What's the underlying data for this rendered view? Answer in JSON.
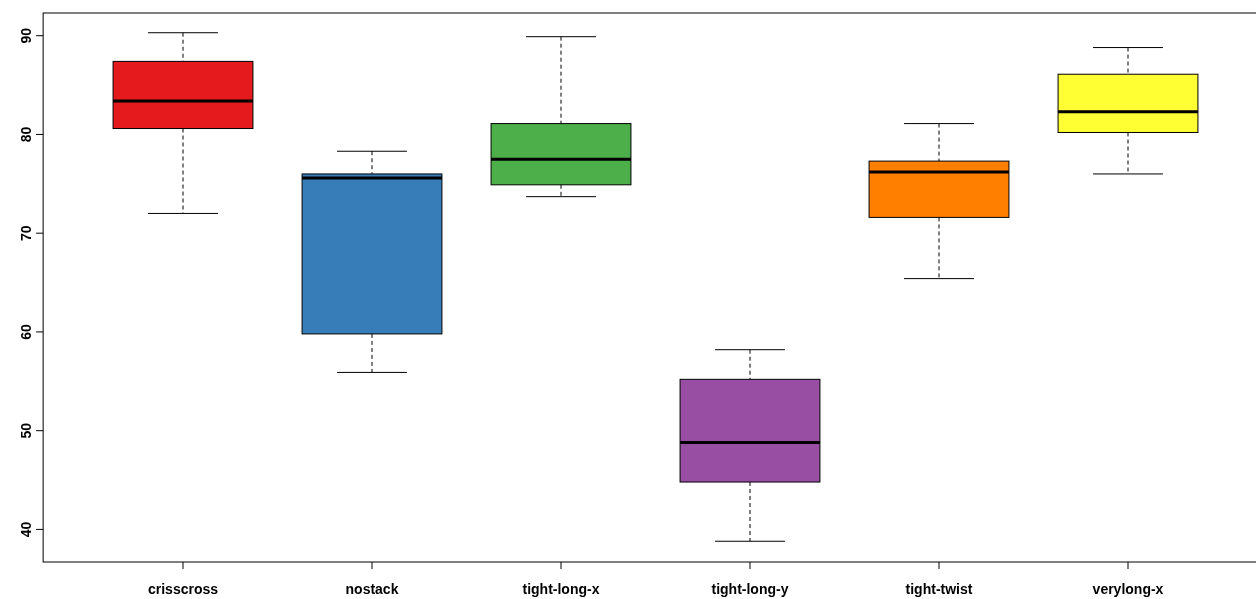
{
  "chart_data": {
    "type": "box",
    "categories": [
      "crisscross",
      "nostack",
      "tight-long-x",
      "tight-long-y",
      "tight-twist",
      "verylong-x"
    ],
    "colors": [
      "#e41a1c",
      "#377eb8",
      "#4daf4a",
      "#984ea3",
      "#ff7f00",
      "#ffff33"
    ],
    "boxes": [
      {
        "low": 72.0,
        "q1": 80.6,
        "median": 83.4,
        "q3": 87.4,
        "high": 90.3
      },
      {
        "low": 55.9,
        "q1": 59.8,
        "median": 75.6,
        "q3": 76.0,
        "high": 78.3
      },
      {
        "low": 73.7,
        "q1": 74.9,
        "median": 77.5,
        "q3": 81.1,
        "high": 89.9
      },
      {
        "low": 38.8,
        "q1": 44.8,
        "median": 48.8,
        "q3": 55.2,
        "high": 58.2
      },
      {
        "low": 65.4,
        "q1": 71.6,
        "median": 76.2,
        "q3": 77.3,
        "high": 81.1
      },
      {
        "low": 76.0,
        "q1": 80.2,
        "median": 82.3,
        "q3": 86.1,
        "high": 88.8
      }
    ],
    "ylim": [
      36.7,
      92.3
    ],
    "yticks": [
      40,
      50,
      60,
      70,
      80,
      90
    ]
  }
}
